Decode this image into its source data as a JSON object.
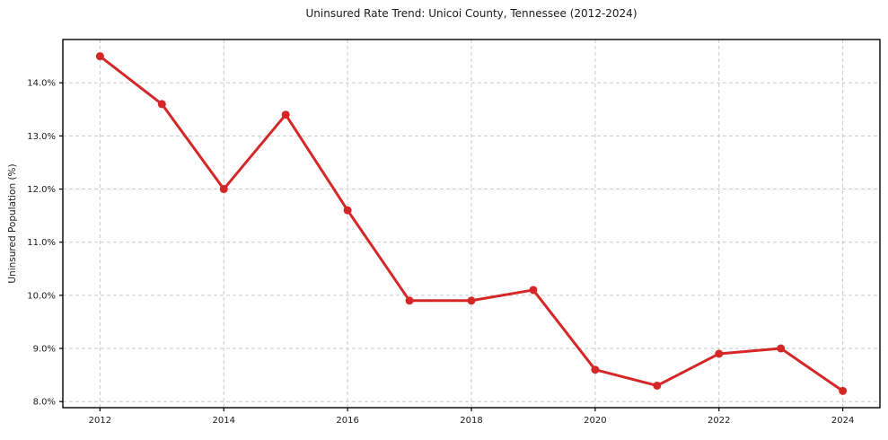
{
  "chart_data": {
    "type": "line",
    "title": "Uninsured Rate Trend: Unicoi County, Tennessee (2012-2024)",
    "xlabel": "",
    "ylabel": "Uninsured Population (%)",
    "x": [
      2012,
      2013,
      2014,
      2015,
      2016,
      2017,
      2018,
      2019,
      2020,
      2021,
      2022,
      2023,
      2024
    ],
    "series": [
      {
        "name": "Uninsured rate",
        "values": [
          14.5,
          13.6,
          12.0,
          13.4,
          11.6,
          9.9,
          9.9,
          10.1,
          8.6,
          8.3,
          8.9,
          9.0,
          8.2
        ]
      }
    ],
    "xticks": [
      2012,
      2014,
      2016,
      2018,
      2020,
      2022,
      2024
    ],
    "xticklabels": [
      "2012",
      "2014",
      "2016",
      "2018",
      "2020",
      "2022",
      "2024"
    ],
    "yticks": [
      8.0,
      9.0,
      10.0,
      11.0,
      12.0,
      13.0,
      14.0
    ],
    "yticklabels": [
      "8.0%",
      "9.0%",
      "10.0%",
      "11.0%",
      "12.0%",
      "13.0%",
      "14.0%"
    ],
    "xlim": [
      2011.4,
      2024.6
    ],
    "ylim": [
      7.885,
      14.815
    ],
    "grid": true,
    "legend": "none",
    "colors": {
      "line": "#d62728",
      "marker": "#d62728",
      "grid": "#c9c9c9",
      "spine": "#000000",
      "background": "#ffffff",
      "text": "#1a1a1a"
    },
    "line_width": 3,
    "marker": "circle",
    "marker_radius": 4.5
  }
}
